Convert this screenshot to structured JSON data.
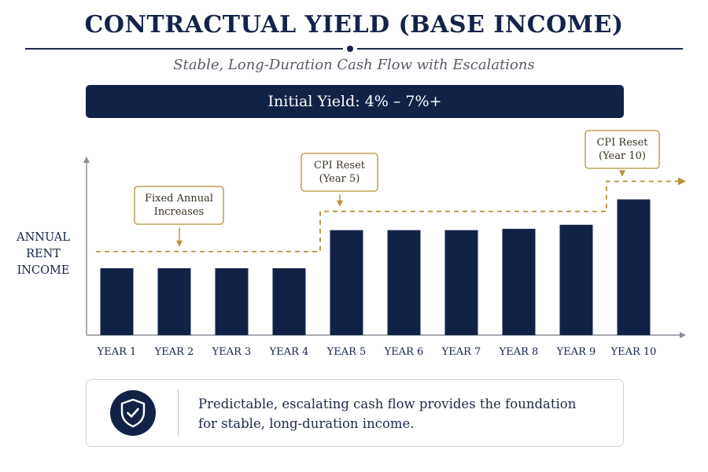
{
  "header": {
    "title": "CONTRACTUAL YIELD (BASE INCOME)",
    "subtitle": "Stable, Long-Duration Cash Flow with Escalations"
  },
  "banner": {
    "text": "Initial Yield: 4% – 7%+"
  },
  "chart_data": {
    "type": "bar",
    "ylabel": "ANNUAL RENT INCOME",
    "categories": [
      "YEAR 1",
      "YEAR 2",
      "YEAR 3",
      "YEAR 4",
      "YEAR 5",
      "YEAR 6",
      "YEAR 7",
      "YEAR 8",
      "YEAR 9",
      "YEAR 10"
    ],
    "values": [
      1.0,
      1.0,
      1.0,
      1.0,
      1.57,
      1.57,
      1.57,
      1.59,
      1.65,
      2.03
    ],
    "trend_steps": [
      1.25,
      1.85,
      2.3
    ],
    "ylim": [
      0,
      2.6
    ],
    "grid": false,
    "annotations": [
      {
        "lines": [
          "Fixed Annual",
          "Increases"
        ]
      },
      {
        "lines": [
          "CPI Reset",
          "(Year 5)"
        ]
      },
      {
        "lines": [
          "CPI Reset",
          "(Year 10)"
        ]
      }
    ],
    "colors": {
      "bar": "#122247",
      "trend": "#b5913a",
      "axis": "#8a8f98"
    }
  },
  "footer": {
    "icon": "shield-check-icon",
    "text_line1": "Predictable, escalating cash flow provides the foundation",
    "text_line2": "for stable, long-duration income."
  }
}
